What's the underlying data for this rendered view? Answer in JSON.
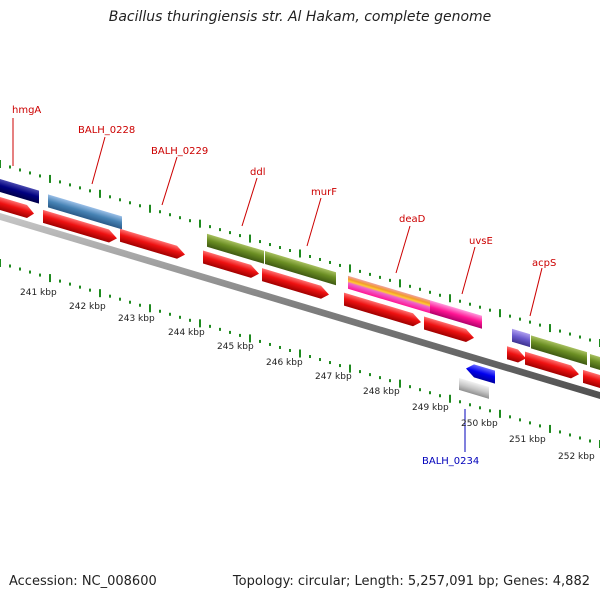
{
  "title": "Bacillus thuringiensis str. Al Hakam, complete genome",
  "footer": {
    "accession": "Accession: NC_008600",
    "topology": "Topology: circular; Length: 5,257,091 bp; Genes: 4,882"
  },
  "colors": {
    "cds_red": "#ee1111",
    "tick_green": "#1e8a1e",
    "backbone": "#7a7a7a",
    "label_red": "#cc0000",
    "label_blue": "#0000bb"
  },
  "gene_labels": [
    {
      "text": "hmgA",
      "color": "red"
    },
    {
      "text": "BALH_0228",
      "color": "red"
    },
    {
      "text": "BALH_0229",
      "color": "red"
    },
    {
      "text": "ddl",
      "color": "red"
    },
    {
      "text": "murF",
      "color": "red"
    },
    {
      "text": "deaD",
      "color": "red"
    },
    {
      "text": "uvsE",
      "color": "red"
    },
    {
      "text": "acpS",
      "color": "red"
    },
    {
      "text": "BALH_0234",
      "color": "blue"
    }
  ],
  "kbp_labels": [
    "241 kbp",
    "242 kbp",
    "243 kbp",
    "244 kbp",
    "245 kbp",
    "246 kbp",
    "247 kbp",
    "248 kbp",
    "249 kbp",
    "250 kbp",
    "251 kbp",
    "252 kbp"
  ]
}
